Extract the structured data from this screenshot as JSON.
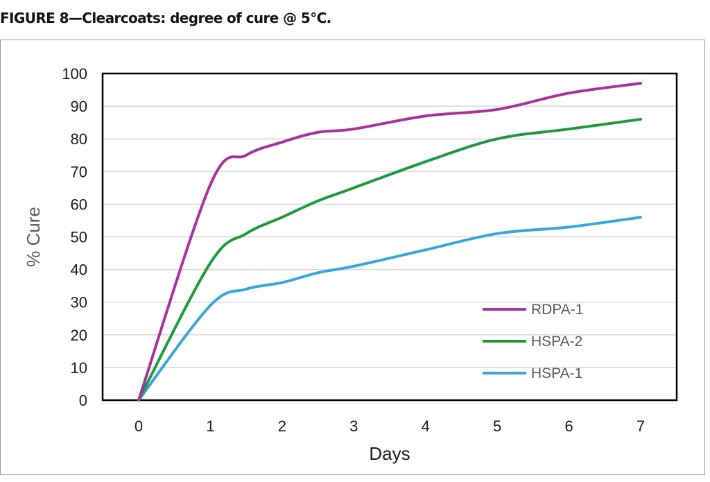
{
  "figure_title": "FIGURE 8—Clearcoats: degree of cure @ 5°C.",
  "chart_data": {
    "type": "line",
    "title": "",
    "xlabel": "Days",
    "ylabel": "% Cure",
    "xlim": [
      0,
      7
    ],
    "ylim": [
      0,
      100
    ],
    "x_ticks": [
      0,
      1,
      2,
      3,
      4,
      5,
      6,
      7
    ],
    "y_ticks": [
      0,
      10,
      20,
      30,
      40,
      50,
      60,
      70,
      80,
      90,
      100
    ],
    "grid": "horizontal",
    "legend_position": "bottom-right",
    "series": [
      {
        "name": "RDPA-1",
        "color": "#a8329a",
        "x": [
          0,
          1,
          1.5,
          2,
          2.5,
          3,
          4,
          5,
          6,
          7
        ],
        "y": [
          0,
          66,
          75,
          79,
          82,
          83,
          87,
          89,
          94,
          97
        ]
      },
      {
        "name": "HSPA-2",
        "color": "#1e9a3c",
        "x": [
          0,
          1,
          1.5,
          2,
          2.5,
          3,
          4,
          5,
          6,
          7
        ],
        "y": [
          0,
          42,
          51,
          56,
          61,
          65,
          73,
          80,
          83,
          86
        ]
      },
      {
        "name": "HSPA-1",
        "color": "#3aa5dc",
        "x": [
          0,
          1,
          1.5,
          2,
          2.5,
          3,
          4,
          5,
          6,
          7
        ],
        "y": [
          0,
          29,
          34,
          36,
          39,
          41,
          46,
          51,
          53,
          56
        ]
      }
    ]
  }
}
